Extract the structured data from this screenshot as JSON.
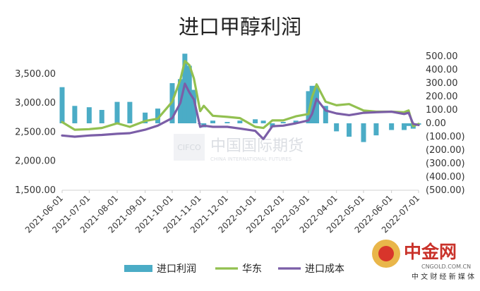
{
  "chart_data": {
    "type": "bar+line",
    "title": "进口甲醇利润",
    "x": [
      "2021-06-01",
      "2021-06-15",
      "2021-07-01",
      "2021-07-15",
      "2021-08-01",
      "2021-08-15",
      "2021-09-01",
      "2021-09-15",
      "2021-10-01",
      "2021-10-10",
      "2021-10-15",
      "2021-10-20",
      "2021-10-25",
      "2021-11-01",
      "2021-11-05",
      "2021-11-15",
      "2021-12-01",
      "2021-12-15",
      "2022-01-01",
      "2022-01-10",
      "2022-01-20",
      "2022-02-01",
      "2022-02-15",
      "2022-03-01",
      "2022-03-05",
      "2022-03-10",
      "2022-03-20",
      "2022-04-01",
      "2022-04-15",
      "2022-05-01",
      "2022-05-15",
      "2022-06-01",
      "2022-06-15",
      "2022-06-20",
      "2022-06-25",
      "2022-07-01"
    ],
    "xticks": [
      "2021-06-01",
      "2021-07-01",
      "2021-08-01",
      "2021-09-01",
      "2021-10-01",
      "2021-11-01",
      "2021-12-01",
      "2022-01-01",
      "2022-02-01",
      "2022-03-01",
      "2022-04-01",
      "2022-05-01",
      "2022-06-01",
      "2022-07-01"
    ],
    "y_left": {
      "ticks": [
        "1,500.00",
        "2,000.00",
        "2,500.00",
        "3,000.00",
        "3,500.00"
      ],
      "lim": [
        1500,
        3800
      ]
    },
    "y_right": {
      "ticks": [
        "500.00",
        "400.00",
        "300.00",
        "200.00",
        "100.00",
        "0.00",
        "(100.00)",
        "(200.00)",
        "(300.00)",
        "(400.00)",
        "(500.00)"
      ],
      "lim": [
        -500,
        500
      ]
    },
    "series": [
      {
        "name": "进口利润",
        "kind": "bar",
        "axis": "right",
        "color": "#4bacc6",
        "values": [
          270,
          130,
          120,
          100,
          160,
          160,
          80,
          110,
          300,
          330,
          520,
          430,
          250,
          0,
          -30,
          20,
          10,
          20,
          30,
          20,
          -30,
          10,
          20,
          240,
          280,
          280,
          130,
          -60,
          -100,
          -140,
          -90,
          -50,
          -50,
          -20,
          -40,
          -10
        ]
      },
      {
        "name": "华东",
        "kind": "line",
        "axis": "left",
        "color": "#92c050",
        "values": [
          2670,
          2540,
          2550,
          2570,
          2650,
          2590,
          2690,
          2730,
          3020,
          3400,
          3720,
          3650,
          3420,
          2860,
          2950,
          2780,
          2760,
          2740,
          2590,
          2570,
          2700,
          2700,
          2770,
          2810,
          3100,
          3320,
          3020,
          2960,
          2980,
          2870,
          2850,
          2850,
          2840,
          2870,
          2600,
          2640
        ]
      },
      {
        "name": "进口成本",
        "kind": "line",
        "axis": "left",
        "color": "#7b5ea7",
        "values": [
          2440,
          2420,
          2440,
          2450,
          2470,
          2480,
          2540,
          2610,
          2740,
          3000,
          3330,
          3180,
          3060,
          2590,
          2610,
          2590,
          2590,
          2560,
          2520,
          2380,
          2600,
          2610,
          2650,
          2700,
          2810,
          3070,
          2870,
          2820,
          2790,
          2830,
          2840,
          2850,
          2810,
          2830,
          2640,
          2620
        ]
      }
    ],
    "legend_position": "bottom",
    "grid": false
  },
  "watermark": {
    "center_logo": "CIFCO",
    "center_text": "中国国际期货",
    "center_sub": "CHINA INTERNATIONAL FUTURES",
    "corner_brand": "中金网",
    "corner_url": "CNGOLD.COM.CN",
    "corner_tagline": "中 文 财 经 新 媒 体"
  }
}
